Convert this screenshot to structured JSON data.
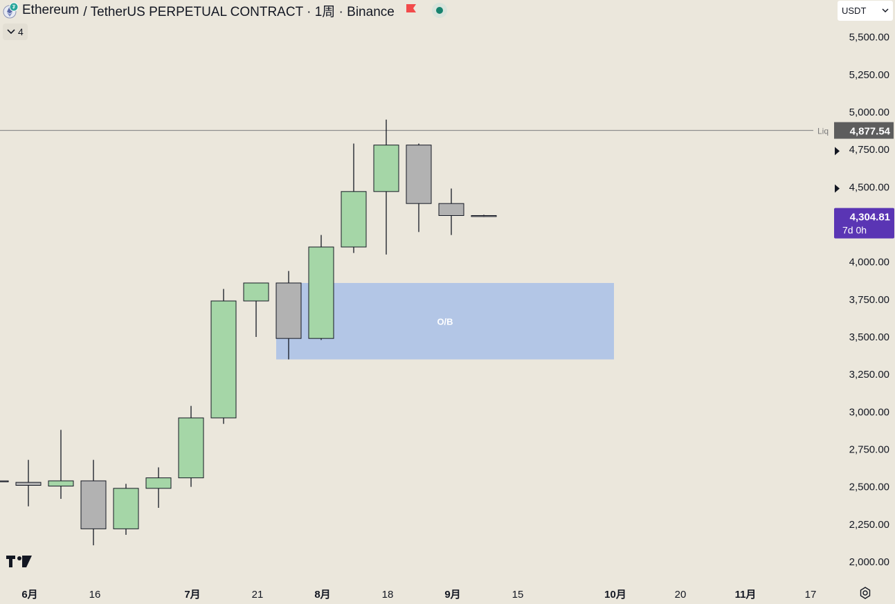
{
  "header": {
    "symbol": "Ethereum",
    "pair": "/ TetherUS PERPETUAL CONTRACT · 1周 · Binance",
    "flag_color": "#f24b4b",
    "status_color": "#17836f"
  },
  "indicators": {
    "count": "4"
  },
  "currency": {
    "value": "USDT"
  },
  "colors": {
    "up": "#a5d6a7",
    "down": "#b2b2b2",
    "ob_zone": "#b3c6e6",
    "price_label": "#5a35b4",
    "liq_label": "#5d5d5d"
  },
  "chart_data": {
    "type": "candlestick",
    "y_range": [
      1900,
      5700
    ],
    "y_ticks": [
      "2,000.00",
      "2,250.00",
      "2,500.00",
      "2,750.00",
      "3,000.00",
      "3,250.00",
      "3,500.00",
      "3,750.00",
      "4,000.00",
      "4,500.00",
      "4,750.00",
      "5,000.00",
      "5,250.00",
      "5,500.00"
    ],
    "y_tick_values": [
      2000,
      2250,
      2500,
      2750,
      3000,
      3250,
      3500,
      3750,
      4000,
      4500,
      4750,
      5000,
      5250,
      5500
    ],
    "x_labels": [
      {
        "label": "6月",
        "index": 1,
        "bold": true
      },
      {
        "label": "16",
        "index": 3,
        "bold": false
      },
      {
        "label": "7月",
        "index": 6,
        "bold": true
      },
      {
        "label": "21",
        "index": 8,
        "bold": false
      },
      {
        "label": "8月",
        "index": 10,
        "bold": true
      },
      {
        "label": "18",
        "index": 12,
        "bold": false
      },
      {
        "label": "9月",
        "index": 14,
        "bold": true
      },
      {
        "label": "15",
        "index": 16,
        "bold": false
      },
      {
        "label": "10月",
        "index": 19,
        "bold": true
      },
      {
        "label": "20",
        "index": 21,
        "bold": false
      },
      {
        "label": "11月",
        "index": 23,
        "bold": true
      },
      {
        "label": "17",
        "index": 25,
        "bold": false
      }
    ],
    "candles": [
      {
        "o": 2540,
        "h": 2550,
        "l": 2530,
        "c": 2535
      },
      {
        "o": 2530,
        "h": 2680,
        "l": 2370,
        "c": 2510
      },
      {
        "o": 2505,
        "h": 2880,
        "l": 2420,
        "c": 2540
      },
      {
        "o": 2540,
        "h": 2680,
        "l": 2110,
        "c": 2220
      },
      {
        "o": 2220,
        "h": 2520,
        "l": 2180,
        "c": 2490
      },
      {
        "o": 2490,
        "h": 2630,
        "l": 2360,
        "c": 2560
      },
      {
        "o": 2560,
        "h": 3040,
        "l": 2500,
        "c": 2960
      },
      {
        "o": 2960,
        "h": 3820,
        "l": 2920,
        "c": 3740
      },
      {
        "o": 3740,
        "h": 3860,
        "l": 3500,
        "c": 3860
      },
      {
        "o": 3860,
        "h": 3940,
        "l": 3350,
        "c": 3490
      },
      {
        "o": 3490,
        "h": 4180,
        "l": 3480,
        "c": 4100
      },
      {
        "o": 4100,
        "h": 4790,
        "l": 4060,
        "c": 4470
      },
      {
        "o": 4470,
        "h": 4950,
        "l": 4050,
        "c": 4780
      },
      {
        "o": 4780,
        "h": 4790,
        "l": 4200,
        "c": 4390
      },
      {
        "o": 4390,
        "h": 4490,
        "l": 4180,
        "c": 4310
      },
      {
        "o": 4310,
        "h": 4315,
        "l": 4300,
        "c": 4305
      }
    ],
    "ob_zone": {
      "label": "O/B",
      "low": 3350,
      "high": 3860,
      "from_index": 9,
      "to_index": 19
    },
    "liq_line": {
      "label": "Liq",
      "value": 4877.54,
      "value_label": "4,877.54"
    },
    "last_price": {
      "value": 4304.81,
      "value_label": "4,304.81",
      "countdown": "7d 0h"
    },
    "markers": [
      4740,
      4490
    ]
  }
}
